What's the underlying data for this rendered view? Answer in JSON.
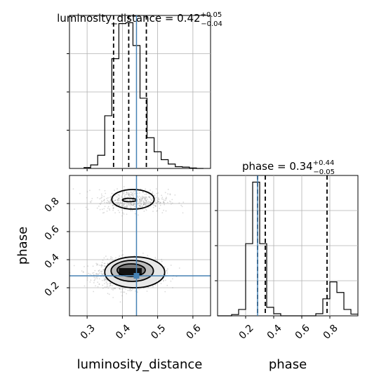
{
  "chart_data": {
    "type": "corner",
    "truth_color": "#4682b4",
    "panels": [
      {
        "name": "luminosity_distance-marginal",
        "kind": "histogram",
        "title": {
          "prefix": "luminosity_distance = 0.42",
          "sup": "+0.05",
          "sub": "−0.04"
        },
        "xlim": [
          0.25,
          0.65
        ],
        "bin_edges": [
          0.29,
          0.31,
          0.33,
          0.35,
          0.37,
          0.39,
          0.41,
          0.43,
          0.45,
          0.47,
          0.49,
          0.51,
          0.53,
          0.55,
          0.57,
          0.59,
          0.61,
          0.63
        ],
        "counts": [
          2,
          8,
          30,
          120,
          250,
          330,
          332,
          280,
          160,
          70,
          38,
          20,
          10,
          4,
          3,
          1,
          0
        ],
        "quantiles": [
          0.375,
          0.418,
          0.468
        ],
        "truth": 0.44
      },
      {
        "name": "phase-marginal",
        "kind": "histogram",
        "title": {
          "prefix": "phase = 0.34",
          "sup": "+0.44",
          "sub": "−0.05"
        },
        "xlim": [
          0.0,
          1.0
        ],
        "bin_edges": [
          0.0,
          0.05,
          0.1,
          0.15,
          0.2,
          0.25,
          0.3,
          0.35,
          0.4,
          0.45,
          0.5,
          0.55,
          0.6,
          0.65,
          0.7,
          0.75,
          0.8,
          0.85,
          0.9,
          0.95,
          1.0
        ],
        "counts": [
          0,
          0,
          3,
          15,
          170,
          315,
          170,
          20,
          5,
          0,
          0,
          0,
          0,
          0,
          5,
          40,
          80,
          55,
          15,
          4
        ],
        "quantiles": [
          0.285,
          0.34,
          0.78
        ],
        "truth": 0.285,
        "xticks": [
          0.2,
          0.4,
          0.6,
          0.8
        ]
      },
      {
        "name": "joint-density",
        "kind": "density2d",
        "xlim": [
          0.25,
          0.65
        ],
        "ylim": [
          0.0,
          1.0
        ],
        "xticks": [
          0.3,
          0.4,
          0.5,
          0.6
        ],
        "yticks": [
          0.2,
          0.4,
          0.6,
          0.8
        ],
        "xlabel": "luminosity_distance",
        "ylabel": "phase",
        "truth": {
          "x": 0.44,
          "y": 0.285
        },
        "clusters": [
          {
            "cx": 0.42,
            "cy": 0.3,
            "sx": 0.045,
            "sy": 0.05,
            "n": 1400
          },
          {
            "cx": 0.43,
            "cy": 0.82,
            "sx": 0.05,
            "sy": 0.04,
            "n": 500
          }
        ],
        "dense_block": {
          "x": [
            0.39,
            0.455
          ],
          "y": [
            0.29,
            0.34
          ]
        },
        "contours": [
          {
            "cx": 0.435,
            "cy": 0.31,
            "rx": 0.085,
            "ry": 0.11
          },
          {
            "cx": 0.428,
            "cy": 0.32,
            "rx": 0.06,
            "ry": 0.075
          },
          {
            "cx": 0.425,
            "cy": 0.325,
            "rx": 0.04,
            "ry": 0.045
          },
          {
            "cx": 0.43,
            "cy": 0.83,
            "rx": 0.06,
            "ry": 0.07
          },
          {
            "cx": 0.42,
            "cy": 0.825,
            "rx": 0.02,
            "ry": 0.012
          }
        ]
      }
    ]
  }
}
